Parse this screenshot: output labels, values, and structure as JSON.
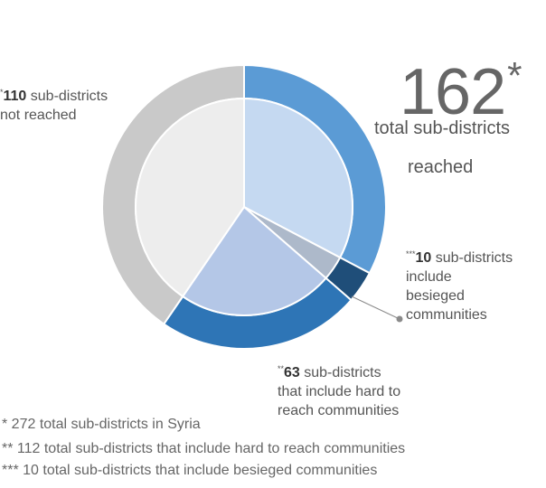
{
  "chart_data": {
    "type": "pie",
    "slices": [
      {
        "label": "sub-districts reached (other)",
        "value": 89,
        "outer_color": "#5b9bd5",
        "inner_color": "#c5d9f1"
      },
      {
        "label": "sub-districts include besieged communities",
        "value": 10,
        "outer_color": "#1f4e79",
        "inner_color": "#adb9ca"
      },
      {
        "label": "sub-districts that include hard to reach communities",
        "value": 63,
        "outer_color": "#2e75b6",
        "inner_color": "#b4c7e7"
      },
      {
        "label": "sub-districts not reached",
        "value": 110,
        "outer_color": "#c9c9c9",
        "inner_color": "#ededed"
      }
    ],
    "total": 272
  },
  "labels": {
    "not_reached": {
      "marker": "*",
      "value": "110",
      "line1": " sub-districts",
      "line2": "not reached"
    },
    "reached_total": {
      "value": "162",
      "marker": "*",
      "line1": "total sub-districts",
      "line2": "reached"
    },
    "besieged": {
      "marker": "***",
      "value": "10",
      "line1": " sub-districts",
      "line2": "include",
      "line3": "besieged",
      "line4": "communities"
    },
    "hard_to_reach": {
      "marker": "**",
      "value": "63",
      "line1": " sub-districts",
      "line2": "that include hard to",
      "line3": "reach communities"
    }
  },
  "footnotes": [
    "* 272 total sub-districts in Syria",
    "** 112 total sub-districts that include hard to reach communities",
    "*** 10 total sub-districts that include besieged communities"
  ]
}
